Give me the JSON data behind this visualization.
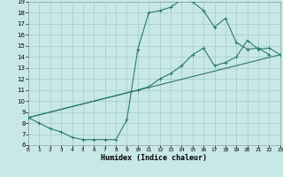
{
  "bg_color": "#c8e8e8",
  "grid_color": "#aacece",
  "line_color": "#2a7a6a",
  "xlim": [
    0,
    23
  ],
  "ylim": [
    6,
    19
  ],
  "xticks": [
    0,
    1,
    2,
    3,
    4,
    5,
    6,
    7,
    8,
    9,
    10,
    11,
    12,
    13,
    14,
    15,
    16,
    17,
    18,
    19,
    20,
    21,
    22,
    23
  ],
  "yticks": [
    6,
    7,
    8,
    9,
    10,
    11,
    12,
    13,
    14,
    15,
    16,
    17,
    18,
    19
  ],
  "xlabel": "Humidex (Indice chaleur)",
  "curve1_x": [
    0,
    1,
    2,
    3,
    4,
    5,
    6,
    7,
    8,
    9,
    10,
    11,
    12,
    13,
    14,
    15,
    16,
    17,
    18,
    19,
    20,
    21,
    22
  ],
  "curve1_y": [
    8.5,
    8.0,
    7.5,
    7.2,
    6.7,
    6.5,
    6.5,
    6.5,
    6.5,
    8.3,
    14.7,
    18.0,
    18.2,
    18.5,
    19.2,
    19.0,
    18.2,
    16.7,
    17.5,
    15.3,
    14.7,
    14.8,
    14.2
  ],
  "curve2_x": [
    0,
    10,
    11,
    12,
    13,
    14,
    15,
    16,
    17,
    18,
    19,
    20,
    21,
    22,
    23
  ],
  "curve2_y": [
    8.5,
    11.0,
    11.3,
    12.0,
    12.5,
    13.2,
    14.2,
    14.8,
    13.2,
    13.5,
    14.0,
    15.5,
    14.7,
    14.8,
    14.2
  ],
  "curve3_x": [
    0,
    23
  ],
  "curve3_y": [
    8.5,
    14.2
  ]
}
